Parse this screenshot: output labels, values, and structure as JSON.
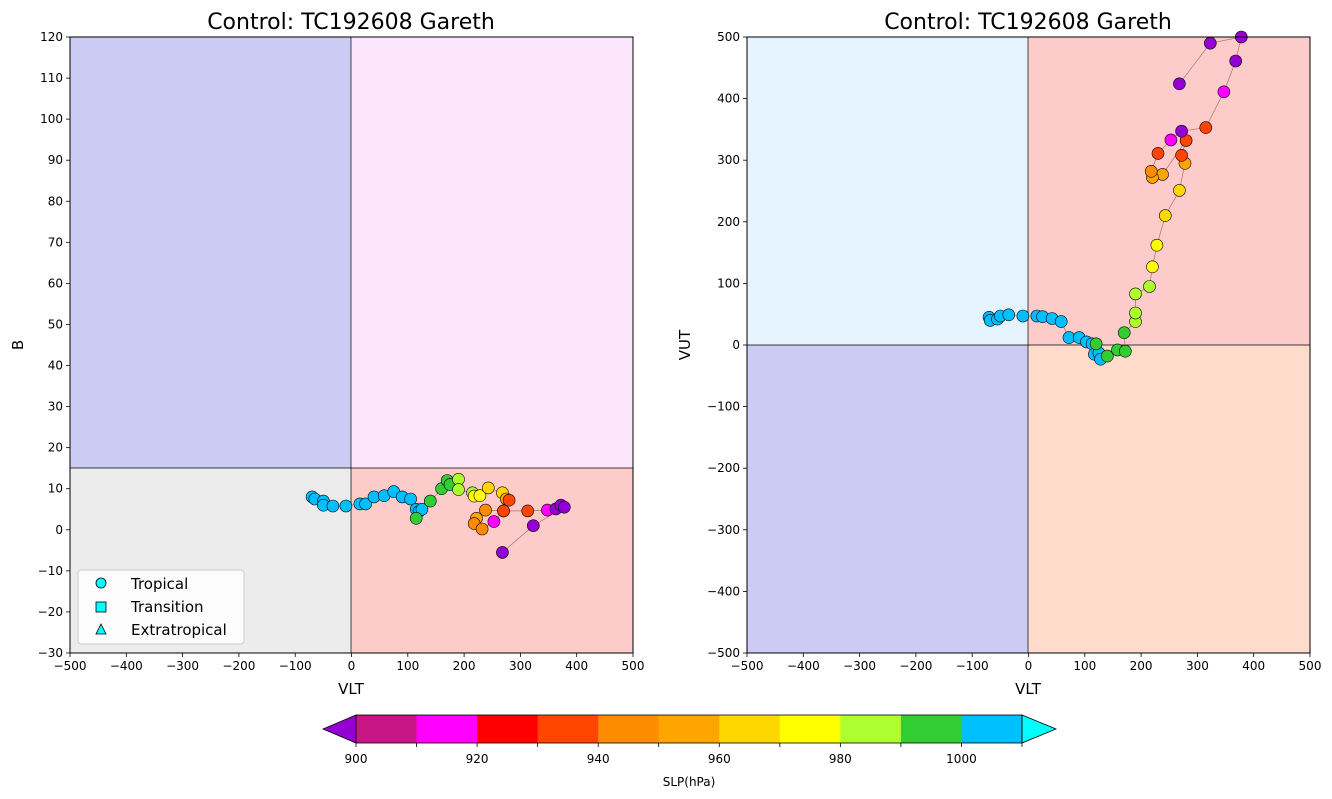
{
  "chart_data": [
    {
      "type": "scatter",
      "title": "Control: TC192608 Gareth",
      "xlabel": "VLT",
      "ylabel": "B",
      "xlim": [
        -500,
        500
      ],
      "ylim": [
        -30,
        120
      ],
      "xticks": [
        -500,
        -400,
        -300,
        -200,
        -100,
        0,
        100,
        200,
        300,
        400,
        500
      ],
      "yticks": [
        -30,
        -20,
        -10,
        0,
        10,
        20,
        30,
        40,
        50,
        60,
        70,
        80,
        90,
        100,
        110,
        120
      ],
      "grid": false,
      "quadrant_split": {
        "x": 0,
        "y": 15
      },
      "quadrant_colors": {
        "upper_left": "#cccbf3",
        "upper_right": "#fce6fb",
        "lower_left": "#ececec",
        "lower_right": "#fecbcb"
      },
      "legend": {
        "placement": "lower-left",
        "entries": [
          {
            "label": "Tropical",
            "marker": "circle"
          },
          {
            "label": "Transition",
            "marker": "square"
          },
          {
            "label": "Extratropical",
            "marker": "triangle"
          }
        ]
      },
      "points": [
        {
          "x": -70,
          "y": 8,
          "slp": 1005
        },
        {
          "x": -65,
          "y": 7.5,
          "slp": 1005
        },
        {
          "x": -50,
          "y": 7,
          "slp": 1005
        },
        {
          "x": -50,
          "y": 6,
          "slp": 1005
        },
        {
          "x": -33,
          "y": 5.8,
          "slp": 1005
        },
        {
          "x": -10,
          "y": 5.8,
          "slp": 1005
        },
        {
          "x": 15,
          "y": 6.3,
          "slp": 1005
        },
        {
          "x": 25,
          "y": 6.3,
          "slp": 1005
        },
        {
          "x": 40,
          "y": 8,
          "slp": 1005
        },
        {
          "x": 58,
          "y": 8.3,
          "slp": 1005
        },
        {
          "x": 75,
          "y": 9.3,
          "slp": 1005
        },
        {
          "x": 90,
          "y": 8,
          "slp": 1005
        },
        {
          "x": 105,
          "y": 7.5,
          "slp": 1005
        },
        {
          "x": 115,
          "y": 5,
          "slp": 1005
        },
        {
          "x": 120,
          "y": 4.5,
          "slp": 1005
        },
        {
          "x": 125,
          "y": 5,
          "slp": 1005
        },
        {
          "x": 115,
          "y": 2.8,
          "slp": 995
        },
        {
          "x": 140,
          "y": 7,
          "slp": 995
        },
        {
          "x": 160,
          "y": 10,
          "slp": 995
        },
        {
          "x": 170,
          "y": 12,
          "slp": 995
        },
        {
          "x": 175,
          "y": 11,
          "slp": 995
        },
        {
          "x": 190,
          "y": 12.3,
          "slp": 985
        },
        {
          "x": 190,
          "y": 9.8,
          "slp": 985
        },
        {
          "x": 215,
          "y": 9,
          "slp": 985
        },
        {
          "x": 218,
          "y": 8.2,
          "slp": 975
        },
        {
          "x": 228,
          "y": 8.3,
          "slp": 975
        },
        {
          "x": 243,
          "y": 10.2,
          "slp": 965
        },
        {
          "x": 268,
          "y": 9,
          "slp": 965
        },
        {
          "x": 275,
          "y": 7.5,
          "slp": 955
        },
        {
          "x": 280,
          "y": 7.2,
          "slp": 935
        },
        {
          "x": 270,
          "y": 4.6,
          "slp": 935
        },
        {
          "x": 238,
          "y": 4.8,
          "slp": 945
        },
        {
          "x": 222,
          "y": 2.8,
          "slp": 955
        },
        {
          "x": 218,
          "y": 1.5,
          "slp": 945
        },
        {
          "x": 232,
          "y": 0.2,
          "slp": 945
        },
        {
          "x": 253,
          "y": 2,
          "slp": 915
        },
        {
          "x": 270,
          "y": 4.6,
          "slp": 935
        },
        {
          "x": 313,
          "y": 4.6,
          "slp": 935
        },
        {
          "x": 348,
          "y": 4.8,
          "slp": 915
        },
        {
          "x": 363,
          "y": 5.1,
          "slp": 895
        },
        {
          "x": 372,
          "y": 6,
          "slp": 895
        },
        {
          "x": 378,
          "y": 5.5,
          "slp": 895
        },
        {
          "x": 323,
          "y": 1,
          "slp": 895
        },
        {
          "x": 268,
          "y": -5.5,
          "slp": 895
        }
      ]
    },
    {
      "type": "scatter",
      "title": "Control: TC192608 Gareth",
      "xlabel": "VLT",
      "ylabel": "VUT",
      "xlim": [
        -500,
        500
      ],
      "ylim": [
        -500,
        500
      ],
      "xticks": [
        -500,
        -400,
        -300,
        -200,
        -100,
        0,
        100,
        200,
        300,
        400,
        500
      ],
      "yticks": [
        -500,
        -400,
        -300,
        -200,
        -100,
        0,
        100,
        200,
        300,
        400,
        500
      ],
      "grid": false,
      "quadrant_split": {
        "x": 0,
        "y": 0
      },
      "quadrant_colors": {
        "upper_left": "#e5f3fe",
        "upper_right": "#fecbcb",
        "lower_left": "#cccbf3",
        "lower_right": "#fedbcb"
      },
      "points": [
        {
          "x": -70,
          "y": 45,
          "slp": 1005
        },
        {
          "x": -68,
          "y": 40,
          "slp": 1005
        },
        {
          "x": -55,
          "y": 42,
          "slp": 1005
        },
        {
          "x": -50,
          "y": 47,
          "slp": 1005
        },
        {
          "x": -35,
          "y": 49,
          "slp": 1005
        },
        {
          "x": -10,
          "y": 47,
          "slp": 1005
        },
        {
          "x": 15,
          "y": 47,
          "slp": 1005
        },
        {
          "x": 25,
          "y": 46,
          "slp": 1005
        },
        {
          "x": 42,
          "y": 43,
          "slp": 1005
        },
        {
          "x": 58,
          "y": 38,
          "slp": 1005
        },
        {
          "x": 72,
          "y": 12,
          "slp": 1005
        },
        {
          "x": 90,
          "y": 12,
          "slp": 1005
        },
        {
          "x": 103,
          "y": 5,
          "slp": 1005
        },
        {
          "x": 113,
          "y": 2,
          "slp": 1005
        },
        {
          "x": 117,
          "y": -15,
          "slp": 1005
        },
        {
          "x": 125,
          "y": -13,
          "slp": 1005
        },
        {
          "x": 128,
          "y": -23,
          "slp": 1005
        },
        {
          "x": 120,
          "y": 2,
          "slp": 995
        },
        {
          "x": 140,
          "y": -18,
          "slp": 995
        },
        {
          "x": 158,
          "y": -8,
          "slp": 995
        },
        {
          "x": 172,
          "y": -10,
          "slp": 995
        },
        {
          "x": 170,
          "y": 20,
          "slp": 995
        },
        {
          "x": 190,
          "y": 38,
          "slp": 985
        },
        {
          "x": 190,
          "y": 52,
          "slp": 985
        },
        {
          "x": 190,
          "y": 83,
          "slp": 985
        },
        {
          "x": 215,
          "y": 95,
          "slp": 985
        },
        {
          "x": 220,
          "y": 127,
          "slp": 975
        },
        {
          "x": 228,
          "y": 162,
          "slp": 975
        },
        {
          "x": 243,
          "y": 210,
          "slp": 965
        },
        {
          "x": 268,
          "y": 251,
          "slp": 965
        },
        {
          "x": 278,
          "y": 295,
          "slp": 955
        },
        {
          "x": 272,
          "y": 308,
          "slp": 935
        },
        {
          "x": 280,
          "y": 332,
          "slp": 935
        },
        {
          "x": 238,
          "y": 277,
          "slp": 955
        },
        {
          "x": 220,
          "y": 272,
          "slp": 955
        },
        {
          "x": 218,
          "y": 282,
          "slp": 945
        },
        {
          "x": 230,
          "y": 311,
          "slp": 935
        },
        {
          "x": 253,
          "y": 333,
          "slp": 915
        },
        {
          "x": 272,
          "y": 347,
          "slp": 895
        },
        {
          "x": 315,
          "y": 353,
          "slp": 935
        },
        {
          "x": 347,
          "y": 411,
          "slp": 915
        },
        {
          "x": 368,
          "y": 461,
          "slp": 895
        },
        {
          "x": 378,
          "y": 500,
          "slp": 895
        },
        {
          "x": 323,
          "y": 490,
          "slp": 895
        },
        {
          "x": 268,
          "y": 424,
          "slp": 895
        }
      ]
    }
  ],
  "colorbar": {
    "label": "SLP(hPa)",
    "ticks": [
      900,
      920,
      940,
      960,
      980,
      1000
    ],
    "boundaries": [
      900,
      910,
      920,
      930,
      940,
      950,
      960,
      970,
      980,
      990,
      1000,
      1010
    ],
    "colors": [
      "#c71585",
      "#ff00ff",
      "#ff0000",
      "#ff4500",
      "#ff8c00",
      "#ffa500",
      "#ffd700",
      "#ffff00",
      "#adff2f",
      "#32cd32",
      "#00bfff"
    ],
    "under_color": "#9400d3",
    "over_color": "#00ffff"
  }
}
